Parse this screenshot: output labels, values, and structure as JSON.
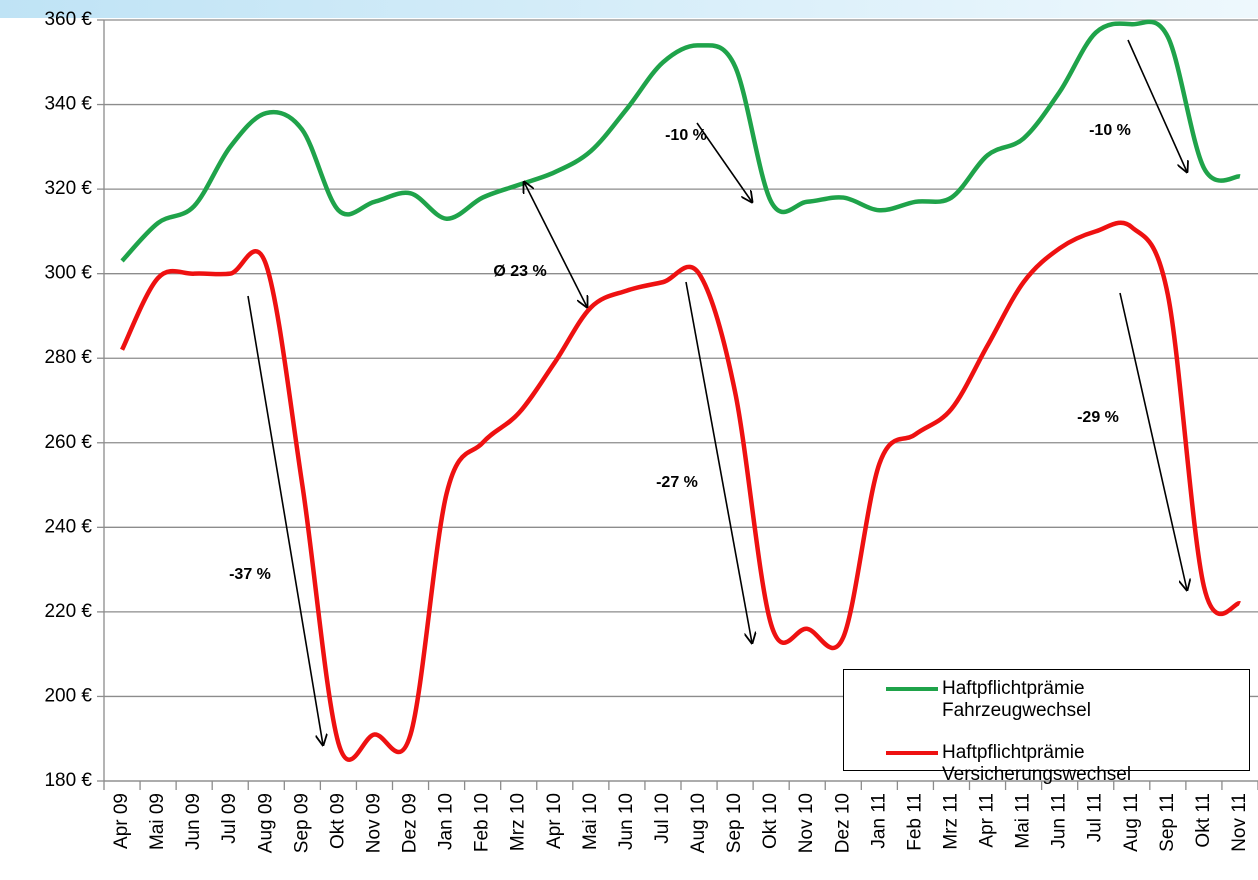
{
  "chart_data": {
    "type": "line",
    "categories": [
      "Apr 09",
      "Mai 09",
      "Jun 09",
      "Jul 09",
      "Aug 09",
      "Sep 09",
      "Okt 09",
      "Nov 09",
      "Dez 09",
      "Jan 10",
      "Feb 10",
      "Mrz 10",
      "Apr 10",
      "Mai 10",
      "Jun 10",
      "Jul 10",
      "Aug 10",
      "Sep 10",
      "Okt 10",
      "Nov 10",
      "Dez 10",
      "Jan 11",
      "Feb 11",
      "Mrz 11",
      "Apr 11",
      "Mai 11",
      "Jun 11",
      "Jul 11",
      "Aug 11",
      "Sep 11",
      "Okt 11",
      "Nov 11"
    ],
    "series": [
      {
        "name": "Haftpflichtprämie Fahrzeugwechsel",
        "color": "#1fa34a",
        "values": [
          303,
          312,
          316,
          330,
          338,
          334,
          315,
          317,
          319,
          313,
          318,
          321,
          324,
          329,
          339,
          350,
          354,
          349,
          317,
          317,
          318,
          315,
          317,
          318,
          328,
          332,
          343,
          357,
          359,
          356,
          325,
          323
        ]
      },
      {
        "name": "Haftpflichtprämie Versicherungswechsel",
        "color": "#ee1111",
        "values": [
          282,
          299,
          300,
          300,
          302,
          250,
          189,
          191,
          191,
          248,
          260,
          267,
          279,
          292,
          296,
          298,
          300,
          272,
          217,
          216,
          214,
          255,
          262,
          268,
          283,
          298,
          306,
          310,
          311,
          295,
          226,
          222
        ]
      }
    ],
    "ylim": [
      180,
      360
    ],
    "yticks": [
      {
        "value": 180,
        "label": "180 €"
      },
      {
        "value": 200,
        "label": "200 €"
      },
      {
        "value": 220,
        "label": "220 €"
      },
      {
        "value": 240,
        "label": "240 €"
      },
      {
        "value": 260,
        "label": "260 €"
      },
      {
        "value": 280,
        "label": "280 €"
      },
      {
        "value": 300,
        "label": "300 €"
      },
      {
        "value": 320,
        "label": "320 €"
      },
      {
        "value": 340,
        "label": "340 €"
      },
      {
        "value": 360,
        "label": "360 €"
      }
    ],
    "grid": true,
    "annotations": [
      "-37 %",
      "-10 %",
      "Ø 23 %",
      "-27 %",
      "-10 %",
      "-29 %"
    ]
  }
}
